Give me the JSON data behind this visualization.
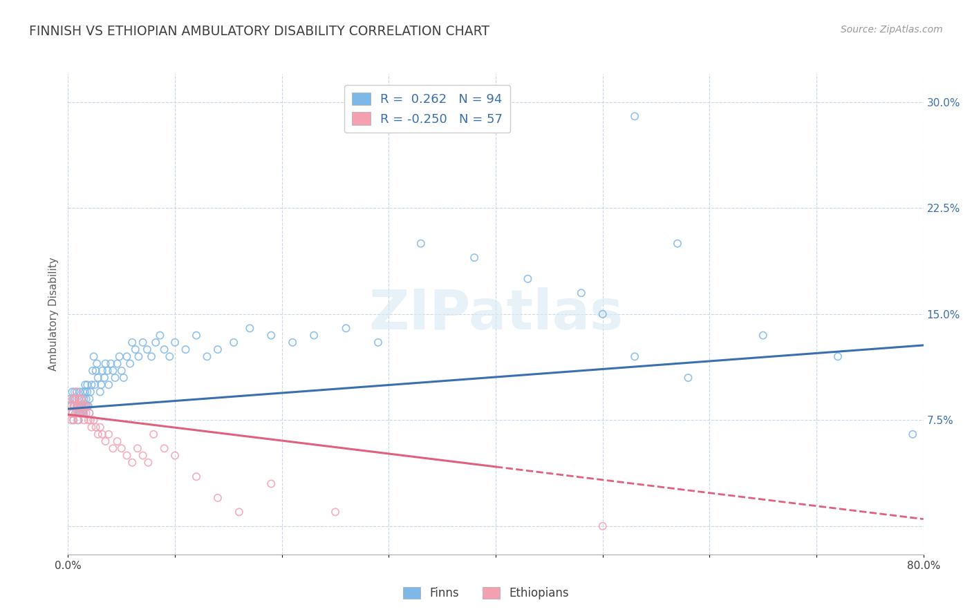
{
  "title": "FINNISH VS ETHIOPIAN AMBULATORY DISABILITY CORRELATION CHART",
  "source": "Source: ZipAtlas.com",
  "ylabel": "Ambulatory Disability",
  "xlim": [
    0.0,
    0.8
  ],
  "ylim": [
    -0.02,
    0.32
  ],
  "yticks": [
    0.0,
    0.075,
    0.15,
    0.225,
    0.3
  ],
  "ytick_labels": [
    "",
    "7.5%",
    "15.0%",
    "22.5%",
    "30.0%"
  ],
  "xticks": [
    0.0,
    0.1,
    0.2,
    0.3,
    0.4,
    0.5,
    0.6,
    0.7,
    0.8
  ],
  "xtick_labels": [
    "0.0%",
    "",
    "",
    "",
    "",
    "",
    "",
    "",
    "80.0%"
  ],
  "legend_bottom": [
    "Finns",
    "Ethiopians"
  ],
  "finn_R": 0.262,
  "finn_N": 94,
  "ethiopian_R": -0.25,
  "ethiopian_N": 57,
  "finn_color": "#7EB8E8",
  "ethiopian_color": "#F4A0B0",
  "finn_line_color": "#3A6FB0",
  "ethiopian_line_color": "#E06080",
  "background_color": "#FFFFFF",
  "grid_color": "#C8D8E8",
  "title_color": "#404040",
  "legend_text_color": "#3A6FB0",
  "watermark_text": "ZIPatlas",
  "finn_line_x0": 0.0,
  "finn_line_y0": 0.083,
  "finn_line_x1": 0.8,
  "finn_line_y1": 0.128,
  "eth_line_solid_x0": 0.0,
  "eth_line_solid_y0": 0.079,
  "eth_line_solid_x1": 0.4,
  "eth_line_solid_y1": 0.042,
  "eth_line_dash_x0": 0.4,
  "eth_line_dash_y0": 0.042,
  "eth_line_dash_x1": 0.8,
  "eth_line_dash_y1": 0.005,
  "finn_x": [
    0.002,
    0.003,
    0.004,
    0.004,
    0.005,
    0.005,
    0.006,
    0.006,
    0.007,
    0.007,
    0.008,
    0.008,
    0.009,
    0.009,
    0.01,
    0.01,
    0.01,
    0.011,
    0.011,
    0.012,
    0.012,
    0.013,
    0.013,
    0.014,
    0.014,
    0.015,
    0.015,
    0.016,
    0.016,
    0.017,
    0.017,
    0.018,
    0.018,
    0.019,
    0.02,
    0.02,
    0.021,
    0.022,
    0.023,
    0.024,
    0.025,
    0.026,
    0.027,
    0.028,
    0.03,
    0.031,
    0.032,
    0.034,
    0.035,
    0.037,
    0.038,
    0.04,
    0.042,
    0.044,
    0.046,
    0.048,
    0.05,
    0.052,
    0.055,
    0.058,
    0.06,
    0.063,
    0.066,
    0.07,
    0.074,
    0.078,
    0.082,
    0.086,
    0.09,
    0.095,
    0.1,
    0.11,
    0.12,
    0.13,
    0.14,
    0.155,
    0.17,
    0.19,
    0.21,
    0.23,
    0.26,
    0.29,
    0.33,
    0.38,
    0.43,
    0.48,
    0.53,
    0.58,
    0.65,
    0.72,
    0.5,
    0.53,
    0.57,
    0.79
  ],
  "finn_y": [
    0.09,
    0.085,
    0.08,
    0.095,
    0.075,
    0.09,
    0.085,
    0.095,
    0.08,
    0.09,
    0.085,
    0.095,
    0.075,
    0.085,
    0.08,
    0.09,
    0.085,
    0.08,
    0.095,
    0.085,
    0.08,
    0.09,
    0.085,
    0.095,
    0.08,
    0.085,
    0.09,
    0.095,
    0.1,
    0.085,
    0.09,
    0.095,
    0.1,
    0.085,
    0.09,
    0.08,
    0.095,
    0.1,
    0.11,
    0.12,
    0.1,
    0.11,
    0.115,
    0.105,
    0.095,
    0.1,
    0.11,
    0.105,
    0.115,
    0.11,
    0.1,
    0.115,
    0.11,
    0.105,
    0.115,
    0.12,
    0.11,
    0.105,
    0.12,
    0.115,
    0.13,
    0.125,
    0.12,
    0.13,
    0.125,
    0.12,
    0.13,
    0.135,
    0.125,
    0.12,
    0.13,
    0.125,
    0.135,
    0.12,
    0.125,
    0.13,
    0.14,
    0.135,
    0.13,
    0.135,
    0.14,
    0.13,
    0.2,
    0.19,
    0.175,
    0.165,
    0.12,
    0.105,
    0.135,
    0.12,
    0.15,
    0.29,
    0.2,
    0.065
  ],
  "ethiopian_x": [
    0.002,
    0.003,
    0.003,
    0.004,
    0.004,
    0.005,
    0.005,
    0.006,
    0.006,
    0.007,
    0.007,
    0.008,
    0.008,
    0.009,
    0.009,
    0.01,
    0.01,
    0.011,
    0.011,
    0.012,
    0.012,
    0.013,
    0.013,
    0.014,
    0.015,
    0.015,
    0.016,
    0.017,
    0.018,
    0.019,
    0.02,
    0.021,
    0.022,
    0.024,
    0.026,
    0.028,
    0.03,
    0.032,
    0.035,
    0.038,
    0.042,
    0.046,
    0.05,
    0.055,
    0.06,
    0.065,
    0.07,
    0.075,
    0.08,
    0.09,
    0.1,
    0.12,
    0.14,
    0.16,
    0.19,
    0.25,
    0.5
  ],
  "ethiopian_y": [
    0.08,
    0.075,
    0.085,
    0.09,
    0.08,
    0.085,
    0.075,
    0.09,
    0.085,
    0.08,
    0.09,
    0.085,
    0.095,
    0.08,
    0.085,
    0.09,
    0.075,
    0.085,
    0.08,
    0.09,
    0.085,
    0.08,
    0.09,
    0.085,
    0.08,
    0.075,
    0.085,
    0.08,
    0.085,
    0.075,
    0.08,
    0.075,
    0.07,
    0.075,
    0.07,
    0.065,
    0.07,
    0.065,
    0.06,
    0.065,
    0.055,
    0.06,
    0.055,
    0.05,
    0.045,
    0.055,
    0.05,
    0.045,
    0.065,
    0.055,
    0.05,
    0.035,
    0.02,
    0.01,
    0.03,
    0.01,
    0.0
  ]
}
